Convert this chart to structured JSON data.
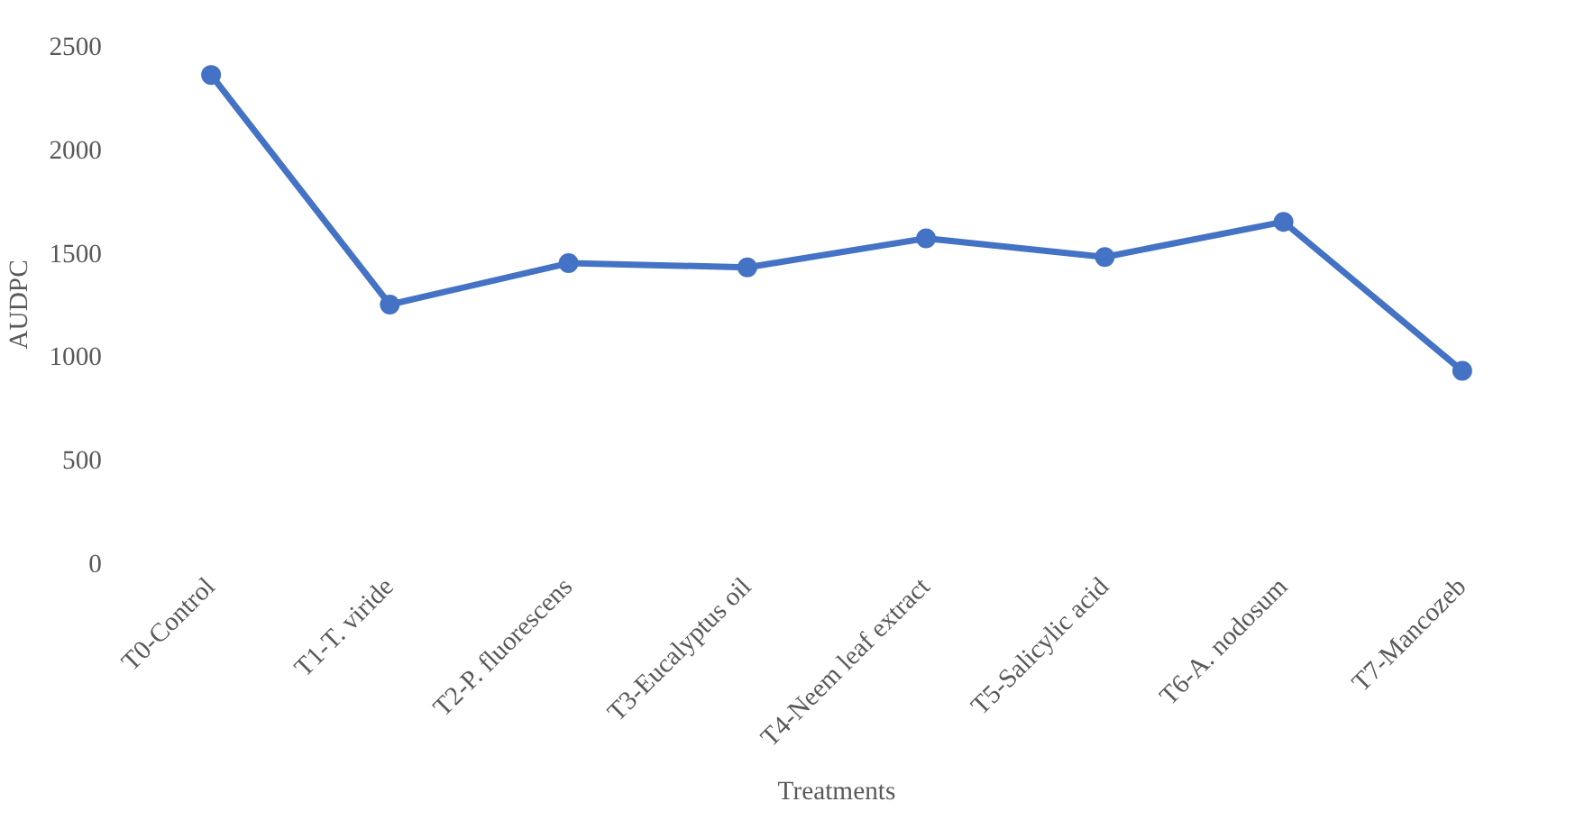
{
  "chart_data": {
    "type": "line",
    "xlabel": "Treatments",
    "ylabel": "AUDPC",
    "categories": [
      "T0-Control",
      "T1-T. viride",
      "T2-P. fluorescens",
      "T3-Eucalyptus oil",
      "T4-Neem leaf extract",
      "T5-Salicylic acid",
      "T6-A. nodosum",
      "T7-Mancozeb"
    ],
    "series": [
      {
        "color": "#4472c4",
        "values": [
          2360,
          1250,
          1450,
          1430,
          1570,
          1480,
          1650,
          930
        ]
      }
    ],
    "ylim": [
      0,
      2500
    ],
    "yticks": [
      0,
      500,
      1000,
      1500,
      2000,
      2500
    ],
    "grid": false,
    "marker": "circle",
    "line_style": "solid"
  }
}
